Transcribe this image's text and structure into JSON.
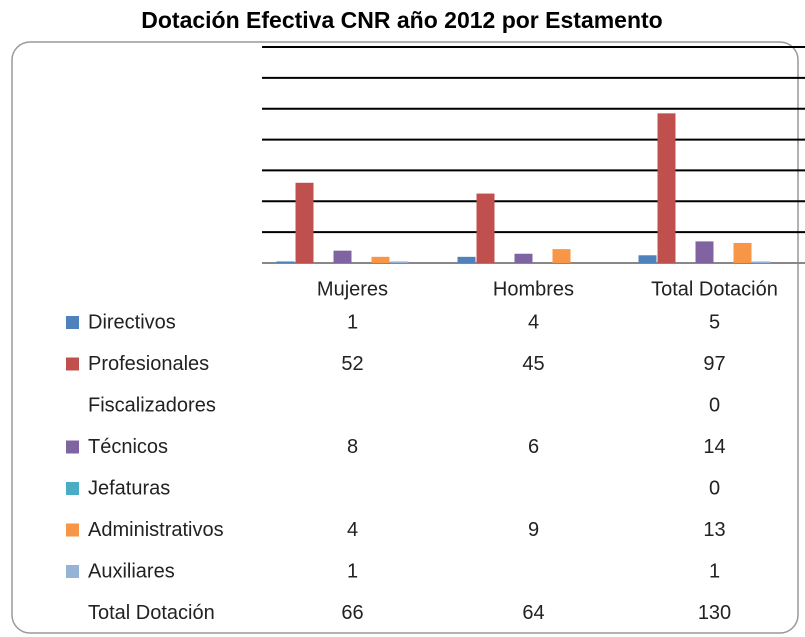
{
  "chart_data": {
    "type": "bar",
    "title": "Dotación Efectiva CNR año 2012 por Estamento",
    "categories": [
      "Mujeres",
      "Hombres",
      "Total Dotación"
    ],
    "series": [
      {
        "name": "Directivos",
        "color": "#4f81bd",
        "values": [
          1,
          4,
          5
        ]
      },
      {
        "name": "Profesionales",
        "color": "#c0504d",
        "values": [
          52,
          45,
          97
        ]
      },
      {
        "name": "Fiscalizadores",
        "values": [
          null,
          null,
          0
        ]
      },
      {
        "name": "Técnicos",
        "color": "#8064a2",
        "values": [
          8,
          6,
          14
        ]
      },
      {
        "name": "Jefaturas",
        "color": "#4bacc6",
        "values": [
          null,
          null,
          0
        ]
      },
      {
        "name": "Administrativos",
        "color": "#f79646",
        "values": [
          4,
          9,
          13
        ]
      },
      {
        "name": "Auxiliares",
        "color": "#95b3d7",
        "values": [
          1,
          null,
          1
        ]
      }
    ],
    "total_row": {
      "name": "Total Dotación",
      "values": [
        66,
        64,
        130
      ]
    },
    "ylim": [
      0,
      140
    ],
    "yticks": [
      0,
      20,
      40,
      60,
      80,
      100,
      120,
      140
    ],
    "grid": true
  }
}
